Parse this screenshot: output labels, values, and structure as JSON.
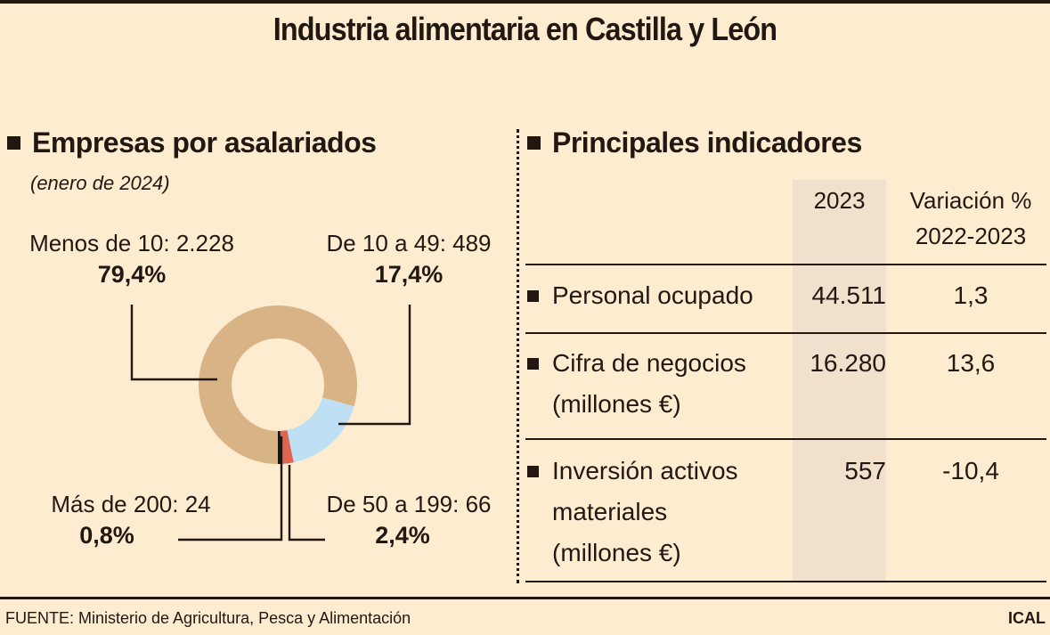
{
  "title": "Industria alimentaria en Castilla y León",
  "left_section": {
    "heading": "Empresas por asalariados",
    "subtitle": "(enero de 2024)"
  },
  "right_section": {
    "heading": "Principales indicadores",
    "columns": [
      "2023",
      "Variación %\n2022-2023"
    ],
    "col1_header": "2023",
    "col2_header_line1": "Variación %",
    "col2_header_line2": "2022-2023",
    "rows": [
      {
        "label_lines": [
          "Personal ocupado"
        ],
        "value_2023": "44.511",
        "variation": "1,3"
      },
      {
        "label_lines": [
          "Cifra de negocios",
          "(millones €)"
        ],
        "value_2023": "16.280",
        "variation": "13,6"
      },
      {
        "label_lines": [
          "Inversión activos",
          "materiales",
          "(millones €)"
        ],
        "value_2023": "557",
        "variation": "-10,4"
      }
    ]
  },
  "footer": {
    "source": "FUENTE: Ministerio de Agricultura, Pesca y Alimentación",
    "credit": "ICAL"
  },
  "chart_data": [
    {
      "type": "pie",
      "subtype": "donut",
      "title": "Empresas por asalariados",
      "subtitle": "(enero de 2024)",
      "categories": [
        "Menos de 10",
        "De 10 a 49",
        "De 50 a 199",
        "Más de 200"
      ],
      "counts": [
        2228,
        489,
        66,
        24
      ],
      "count_labels": [
        "2.228",
        "489",
        "66",
        "24"
      ],
      "values": [
        79.4,
        17.4,
        2.4,
        0.8
      ],
      "percent_labels": [
        "79,4%",
        "17,4%",
        "2,4%",
        "0,8%"
      ],
      "colors": [
        "#d8b386",
        "#bfdff4",
        "#dc6652",
        "#1d1410"
      ],
      "legend": "none"
    },
    {
      "type": "table",
      "title": "Principales indicadores",
      "columns": [
        "",
        "2023",
        "Variación % 2022-2023"
      ],
      "rows": [
        [
          "Personal ocupado",
          "44.511",
          "1,3"
        ],
        [
          "Cifra de negocios (millones €)",
          "16.280",
          "13,6"
        ],
        [
          "Inversión activos materiales (millones €)",
          "557",
          "-10,4"
        ]
      ]
    }
  ],
  "colors": {
    "background": "#fdecd0",
    "text": "#231610",
    "column_shade": "#f0e0cc"
  }
}
